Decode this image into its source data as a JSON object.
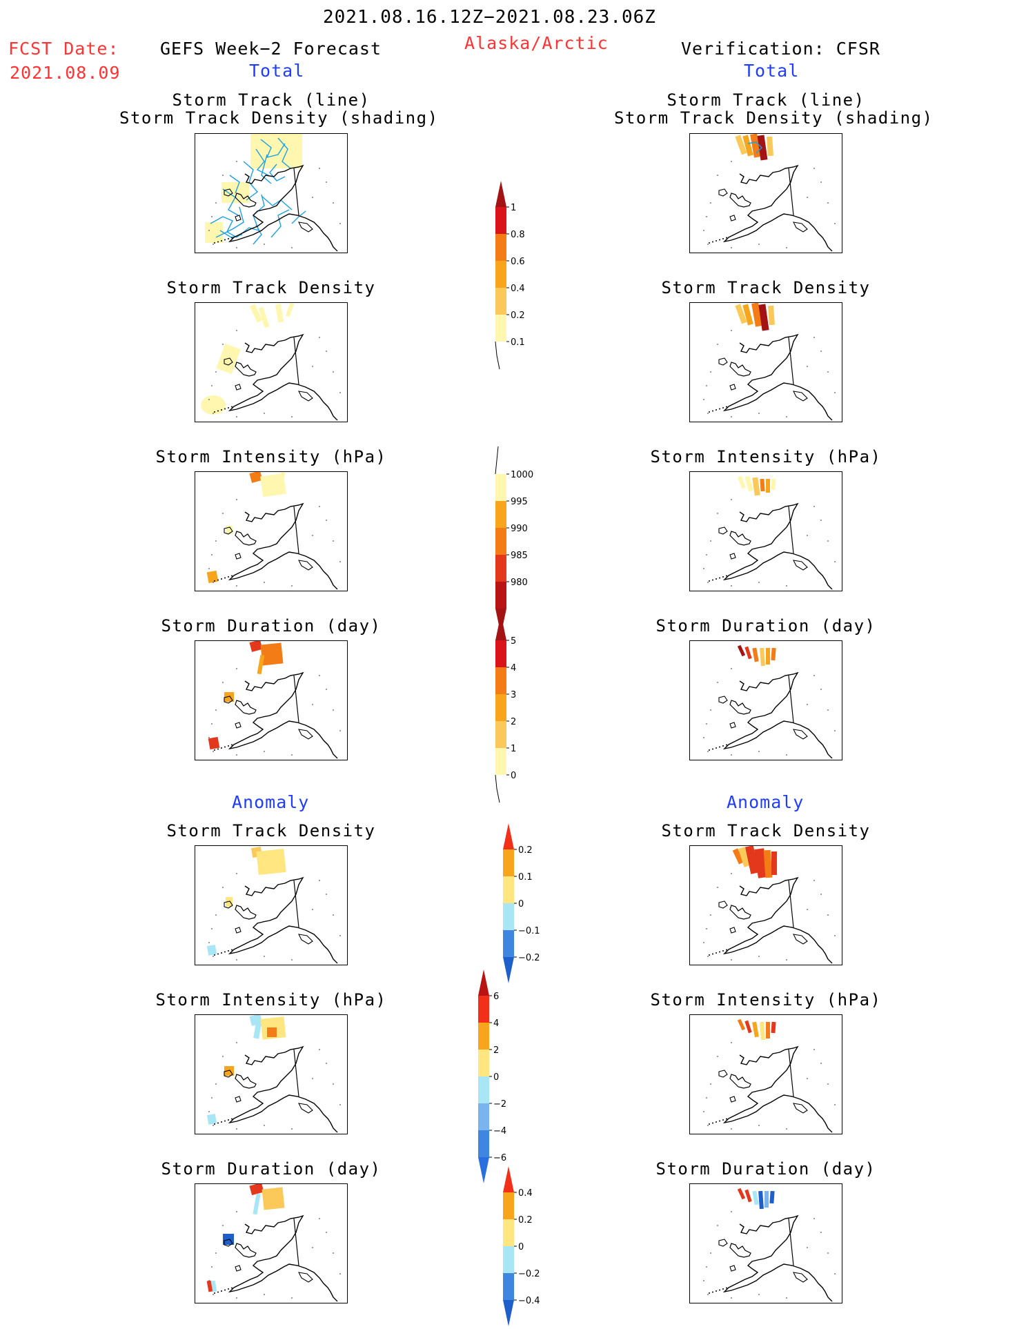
{
  "header": {
    "period": "2021.08.16.12Z−2021.08.23.06Z",
    "fcst_date_label": "FCST Date:",
    "fcst_date_value": "2021.08.09",
    "left_model": "GEFS Week−2 Forecast",
    "region": "Alaska/Arctic",
    "right_model": "Verification: CFSR",
    "total_left": "Total",
    "total_right": "Total",
    "anomaly_left": "Anomaly",
    "anomaly_right": "Anomaly"
  },
  "panel_titles": {
    "track_line_1": "Storm Track (line)",
    "track_line_2": "Storm Track Density (shading)",
    "density": "Storm Track Density",
    "intensity": "Storm Intensity (hPa)",
    "duration": "Storm Duration (day)"
  },
  "colorbars": {
    "density": [
      "1",
      "0.8",
      "0.6",
      "0.4",
      "0.2",
      "0.1"
    ],
    "intensity": [
      "1000",
      "995",
      "990",
      "985",
      "980"
    ],
    "duration": [
      "5",
      "4",
      "3",
      "2",
      "1",
      "0"
    ],
    "density_anom": [
      "0.2",
      "0.1",
      "0",
      "−0.1",
      "−0.2"
    ],
    "intensity_anom": [
      "6",
      "4",
      "2",
      "0",
      "−2",
      "−4",
      "−6"
    ],
    "duration_anom": [
      "0.4",
      "0.2",
      "0",
      "−0.2",
      "−0.4"
    ]
  },
  "colors": {
    "title_red": "#ff3333",
    "label_blue": "#1f3cff",
    "track_line": "#1aa0e6"
  }
}
